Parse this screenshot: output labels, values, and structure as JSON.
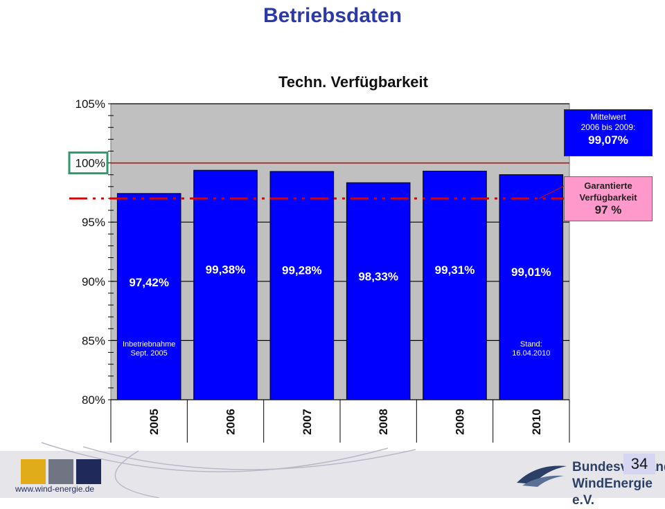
{
  "page": {
    "title": "Betriebsdaten",
    "page_number": "34",
    "footer_url": "www.wind-energie.de",
    "logo_line1": "Bundesverband",
    "logo_line2": "WindEnergie e.V."
  },
  "chart_data": {
    "type": "bar",
    "title": "Techn. Verfügbarkeit",
    "categories": [
      "2005",
      "2006",
      "2007",
      "2008",
      "2009",
      "2010"
    ],
    "values": [
      97.42,
      99.38,
      99.28,
      98.33,
      99.31,
      99.01
    ],
    "value_labels": [
      "97,42%",
      "99,38%",
      "99,28%",
      "98,33%",
      "99,31%",
      "99,01%"
    ],
    "ylim": [
      80,
      105
    ],
    "yticks": [
      80,
      85,
      90,
      95,
      100,
      105
    ],
    "ytick_labels": [
      "80%",
      "85%",
      "90%",
      "95%",
      "100%",
      "105%"
    ],
    "grid": true,
    "bar_color": "#0000ff",
    "plot_background": "#c0c0c0",
    "reference_lines": [
      {
        "value": 100,
        "style": "solid",
        "color": "#dd0000"
      },
      {
        "value": 97,
        "style": "dash-dot",
        "color": "#dd0000"
      }
    ],
    "highlighted_tick": "100%",
    "bar_notes": [
      {
        "category": "2005",
        "lines": [
          "Inbetriebnahme",
          "Sept. 2005"
        ]
      },
      {
        "category": "2010",
        "lines": [
          "Stand:",
          "16.04.2010"
        ]
      }
    ],
    "mean_box": {
      "line1": "Mittelwert",
      "line2": "2006 bis 2009:",
      "value": "99,07%",
      "color": "#0000ff"
    },
    "guarantee_box": {
      "line1": "Garantierte",
      "line2": "Verfügbarkeit",
      "value": "97 %",
      "color": "#ff99cc"
    }
  }
}
